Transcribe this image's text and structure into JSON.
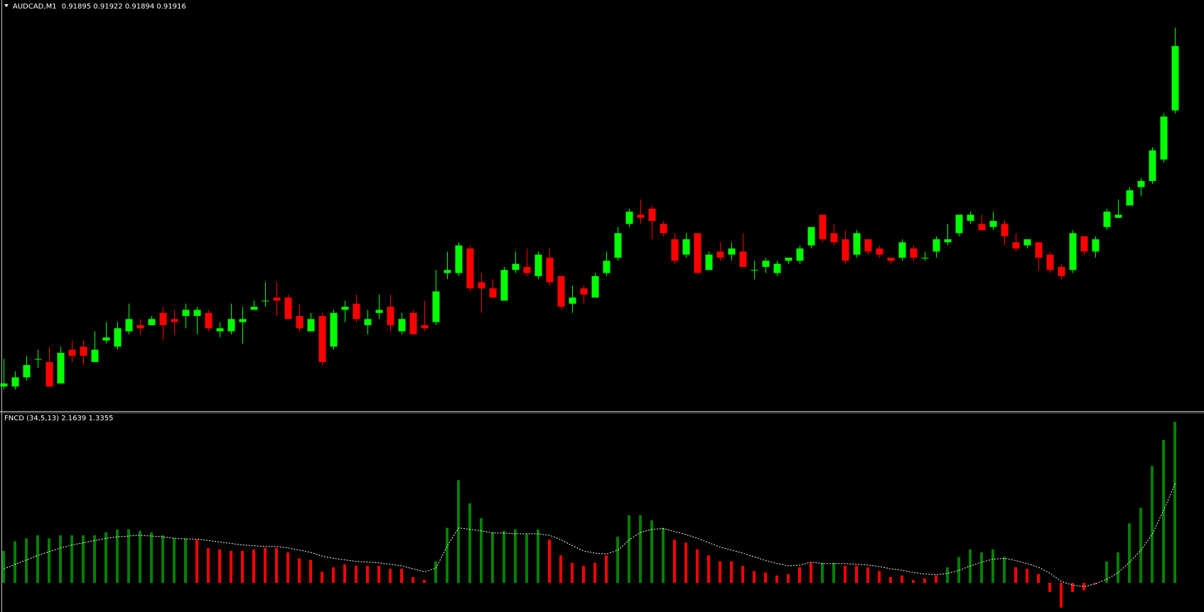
{
  "chart_data": [
    {
      "type": "candlestick",
      "title": "AUDCAD,M1",
      "open": [
        0.91805,
        0.91805,
        0.91808,
        0.91814,
        0.91813,
        0.91806,
        0.91817,
        0.91818,
        0.91813,
        0.9182,
        0.91818,
        0.91823,
        0.91825,
        0.91825,
        0.91829,
        0.91827,
        0.91828,
        0.91828,
        0.91829,
        0.91823,
        0.91823,
        0.91826,
        0.9183,
        0.91833,
        0.91834,
        0.91834,
        0.91828,
        0.91823,
        0.91828,
        0.91818,
        0.9183,
        0.91832,
        0.91825,
        0.91829,
        0.91831,
        0.91823,
        0.91829,
        0.91825,
        0.91826,
        0.91842,
        0.91842,
        0.9185,
        0.91839,
        0.91837,
        0.91833,
        0.91843,
        0.91844,
        0.91841,
        0.91847,
        0.91841,
        0.91832,
        0.91837,
        0.91834,
        0.91842,
        0.91847,
        0.91858,
        0.91861,
        0.91863,
        0.91858,
        0.91853,
        0.91848,
        0.91855,
        0.91843,
        0.91849,
        0.91848,
        0.91849,
        0.91843,
        0.91844,
        0.91842,
        0.91846,
        0.91846,
        0.91851,
        0.91861,
        0.91855,
        0.91853,
        0.91848,
        0.91853,
        0.9185,
        0.91847,
        0.91847,
        0.9185,
        0.91847,
        0.91849,
        0.91852,
        0.91855,
        0.91859,
        0.91858,
        0.91857,
        0.91858,
        0.91852,
        0.91851,
        0.91852,
        0.91848,
        0.91844,
        0.91843,
        0.91854,
        0.91849,
        0.91857,
        0.9186,
        0.91864,
        0.9187,
        0.91872,
        0.91879,
        0.91895
      ],
      "high": [
        0.91814,
        0.9181,
        0.91815,
        0.91817,
        0.91818,
        0.91818,
        0.9182,
        0.9182,
        0.91823,
        0.91826,
        0.91826,
        0.91832,
        0.91827,
        0.91828,
        0.91831,
        0.9183,
        0.91832,
        0.91831,
        0.9183,
        0.91826,
        0.91832,
        0.91831,
        0.91833,
        0.91839,
        0.91839,
        0.91835,
        0.91832,
        0.91829,
        0.91829,
        0.9183,
        0.91833,
        0.91835,
        0.9183,
        0.91835,
        0.91835,
        0.91829,
        0.9183,
        0.91833,
        0.91843,
        0.91849,
        0.91852,
        0.91851,
        0.91842,
        0.9184,
        0.91844,
        0.91849,
        0.9185,
        0.91849,
        0.9185,
        0.91841,
        0.91838,
        0.91838,
        0.91842,
        0.91849,
        0.91857,
        0.91863,
        0.91866,
        0.91864,
        0.91859,
        0.91855,
        0.91855,
        0.91855,
        0.91849,
        0.91852,
        0.91852,
        0.91855,
        0.91846,
        0.91847,
        0.91846,
        0.91847,
        0.91851,
        0.91857,
        0.91861,
        0.91858,
        0.91856,
        0.91856,
        0.91853,
        0.91851,
        0.91847,
        0.91853,
        0.91851,
        0.91849,
        0.91854,
        0.91858,
        0.91861,
        0.91862,
        0.91861,
        0.91862,
        0.91859,
        0.91855,
        0.91853,
        0.91852,
        0.91849,
        0.91845,
        0.91856,
        0.91854,
        0.91854,
        0.91863,
        0.91866,
        0.9187,
        0.91873,
        0.91883,
        0.91894,
        0.91922
      ],
      "low": [
        0.91804,
        0.91804,
        0.91807,
        0.91811,
        0.91805,
        0.91806,
        0.91813,
        0.91812,
        0.91813,
        0.91819,
        0.91817,
        0.91822,
        0.91822,
        0.91825,
        0.9182,
        0.91822,
        0.91824,
        0.91822,
        0.91823,
        0.91821,
        0.91822,
        0.91819,
        0.9183,
        0.91831,
        0.91828,
        0.91827,
        0.91823,
        0.91823,
        0.91812,
        0.91817,
        0.91826,
        0.91826,
        0.91822,
        0.91827,
        0.91823,
        0.91822,
        0.91822,
        0.91823,
        0.91825,
        0.9184,
        0.91841,
        0.91836,
        0.91829,
        0.91834,
        0.91833,
        0.91842,
        0.91841,
        0.9184,
        0.91838,
        0.9183,
        0.91829,
        0.91832,
        0.91834,
        0.91841,
        0.91846,
        0.91857,
        0.91858,
        0.91853,
        0.91854,
        0.91845,
        0.91847,
        0.91842,
        0.91843,
        0.91846,
        0.91846,
        0.91844,
        0.9184,
        0.91842,
        0.91841,
        0.91845,
        0.91845,
        0.9185,
        0.91852,
        0.91851,
        0.91845,
        0.91847,
        0.91848,
        0.91847,
        0.91845,
        0.91846,
        0.91846,
        0.91846,
        0.91847,
        0.91851,
        0.91854,
        0.91858,
        0.91856,
        0.91856,
        0.91851,
        0.91849,
        0.9185,
        0.91843,
        0.91842,
        0.9184,
        0.91842,
        0.91848,
        0.91847,
        0.91856,
        0.9186,
        0.91864,
        0.91867,
        0.91871,
        0.91878,
        0.91894
      ],
      "close": [
        0.91806,
        0.91808,
        0.91812,
        0.91814,
        0.91805,
        0.91816,
        0.91815,
        0.91815,
        0.91817,
        0.91821,
        0.91824,
        0.91827,
        0.91824,
        0.91827,
        0.91825,
        0.91826,
        0.9183,
        0.9183,
        0.91824,
        0.91824,
        0.91827,
        0.91827,
        0.91831,
        0.91833,
        0.91833,
        0.91827,
        0.91824,
        0.91827,
        0.91813,
        0.91829,
        0.91831,
        0.91827,
        0.91827,
        0.9183,
        0.91825,
        0.91827,
        0.91822,
        0.91824,
        0.91836,
        0.91843,
        0.91851,
        0.91837,
        0.91837,
        0.91834,
        0.91843,
        0.91845,
        0.91842,
        0.91848,
        0.91839,
        0.91831,
        0.91834,
        0.91835,
        0.91841,
        0.91846,
        0.91855,
        0.91862,
        0.9186,
        0.91859,
        0.91855,
        0.91846,
        0.91853,
        0.91842,
        0.91848,
        0.91847,
        0.9185,
        0.91844,
        0.91843,
        0.91846,
        0.91845,
        0.91847,
        0.9185,
        0.91857,
        0.91853,
        0.91852,
        0.91846,
        0.91855,
        0.91849,
        0.91848,
        0.91846,
        0.91852,
        0.91847,
        0.91847,
        0.91853,
        0.91853,
        0.91861,
        0.91861,
        0.91856,
        0.91859,
        0.91854,
        0.9185,
        0.91853,
        0.91847,
        0.91843,
        0.91841,
        0.91855,
        0.91849,
        0.91853,
        0.91862,
        0.91861,
        0.91869,
        0.91872,
        0.91882,
        0.91893,
        0.91916
      ],
      "ylim": [
        0.91797,
        0.91931
      ],
      "up_color": "#00ff00",
      "down_color": "#ff0000"
    },
    {
      "type": "bar",
      "title": "FNCD (34,5,13)",
      "values": [
        0.43,
        0.56,
        0.6,
        0.64,
        0.6,
        0.64,
        0.64,
        0.64,
        0.64,
        0.68,
        0.72,
        0.72,
        0.7,
        0.68,
        0.64,
        0.6,
        0.6,
        0.58,
        0.47,
        0.45,
        0.43,
        0.43,
        0.45,
        0.47,
        0.47,
        0.41,
        0.33,
        0.31,
        0.15,
        0.21,
        0.25,
        0.23,
        0.23,
        0.23,
        0.19,
        0.19,
        0.08,
        0.04,
        0.29,
        0.74,
        1.38,
        1.07,
        0.87,
        0.68,
        0.7,
        0.72,
        0.66,
        0.72,
        0.58,
        0.37,
        0.27,
        0.23,
        0.27,
        0.37,
        0.62,
        0.91,
        0.91,
        0.84,
        0.74,
        0.58,
        0.54,
        0.45,
        0.37,
        0.29,
        0.29,
        0.23,
        0.16,
        0.14,
        0.1,
        0.12,
        0.21,
        0.27,
        0.27,
        0.27,
        0.23,
        0.23,
        0.21,
        0.16,
        0.08,
        0.1,
        0.04,
        0.06,
        0.1,
        0.21,
        0.35,
        0.45,
        0.41,
        0.45,
        0.35,
        0.21,
        0.19,
        0.12,
        -0.12,
        -0.33,
        -0.12,
        -0.1,
        -0.02,
        0.29,
        0.41,
        0.8,
        1.01,
        1.57,
        1.92,
        2.1639
      ],
      "signal": [
        0.19,
        0.25,
        0.31,
        0.37,
        0.42,
        0.47,
        0.51,
        0.54,
        0.57,
        0.6,
        0.62,
        0.63,
        0.64,
        0.63,
        0.62,
        0.6,
        0.59,
        0.59,
        0.57,
        0.55,
        0.53,
        0.51,
        0.5,
        0.49,
        0.49,
        0.47,
        0.44,
        0.41,
        0.36,
        0.33,
        0.31,
        0.29,
        0.28,
        0.27,
        0.25,
        0.23,
        0.19,
        0.15,
        0.2,
        0.5,
        0.74,
        0.72,
        0.7,
        0.67,
        0.67,
        0.66,
        0.66,
        0.66,
        0.64,
        0.58,
        0.5,
        0.43,
        0.4,
        0.39,
        0.44,
        0.58,
        0.68,
        0.72,
        0.73,
        0.69,
        0.65,
        0.6,
        0.54,
        0.48,
        0.44,
        0.4,
        0.35,
        0.3,
        0.26,
        0.23,
        0.24,
        0.28,
        0.26,
        0.26,
        0.26,
        0.25,
        0.24,
        0.22,
        0.19,
        0.17,
        0.14,
        0.12,
        0.11,
        0.13,
        0.17,
        0.23,
        0.28,
        0.32,
        0.33,
        0.3,
        0.26,
        0.21,
        0.13,
        0.02,
        -0.03,
        -0.05,
        -0.01,
        0.05,
        0.14,
        0.28,
        0.44,
        0.66,
        0.98,
        1.3355
      ],
      "ylim": [
        -0.39,
        2.27
      ],
      "up_color": "#008000",
      "down_color": "#ff0000",
      "signal_color": "#ffffff"
    }
  ]
}
